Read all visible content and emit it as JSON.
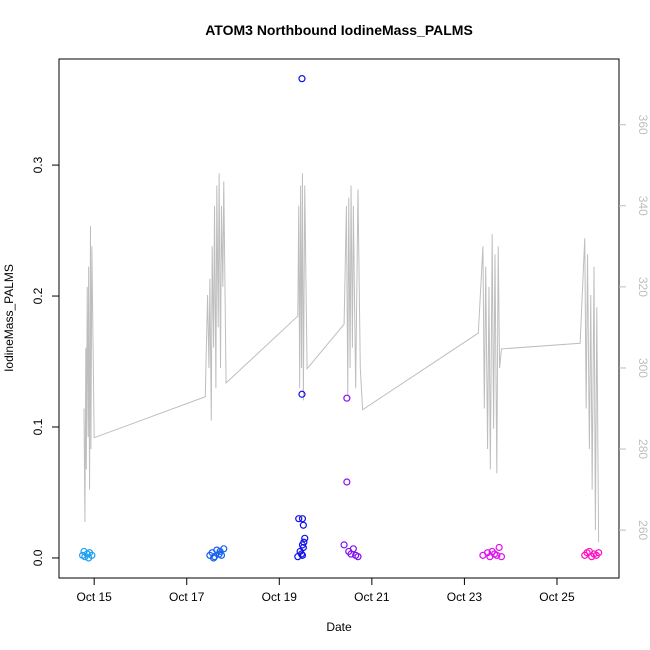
{
  "chart_data": {
    "type": "scatter",
    "title": "ATOM3 Northbound IodineMass_PALMS",
    "x_label": "Date",
    "y_label": "IodineMass_PALMS",
    "xlim": [
      14.24,
      26.34
    ],
    "ylim": [
      -0.0153,
      0.381
    ],
    "y2lim": [
      248.2,
      376.2
    ],
    "xticks": [
      {
        "value": 15,
        "label": "Oct 15"
      },
      {
        "value": 17,
        "label": "Oct 17"
      },
      {
        "value": 19,
        "label": "Oct 19"
      },
      {
        "value": 21,
        "label": "Oct 21"
      },
      {
        "value": 23,
        "label": "Oct 23"
      },
      {
        "value": 25,
        "label": "Oct 25"
      }
    ],
    "yticks": [
      {
        "value": 0,
        "label": "0.0"
      },
      0.1,
      0.2,
      0.3
    ],
    "y2ticks": [
      260,
      280,
      300,
      320,
      340,
      360
    ],
    "y2_color": "#BEBEBE",
    "series": [
      {
        "color": "#1E9FF0",
        "x": [
          14.75,
          14.8,
          14.85,
          14.9,
          14.95,
          14.78,
          14.88
        ],
        "values": [
          0.002,
          0.001,
          0.003,
          0.004,
          0.002,
          0.005,
          0.0
        ]
      },
      {
        "color": "#1560F0",
        "x": [
          17.5,
          17.55,
          17.6,
          17.65,
          17.7,
          17.75,
          17.8,
          17.58,
          17.72
        ],
        "values": [
          0.002,
          0.004,
          0.001,
          0.006,
          0.003,
          0.002,
          0.007,
          0.0,
          0.005
        ]
      },
      {
        "color": "#1010E8",
        "x": [
          19.4,
          19.42,
          19.45,
          19.48,
          19.49,
          19.49,
          19.52,
          19.55,
          19.5,
          19.5,
          19.5,
          19.52,
          19.53
        ],
        "values": [
          0.001,
          0.03,
          0.005,
          0.003,
          0.366,
          0.125,
          0.025,
          0.015,
          0.03,
          0.01,
          0.002,
          0.008,
          0.012
        ]
      },
      {
        "color": "#8010F0",
        "x": [
          20.46,
          20.46,
          20.4,
          20.5,
          20.55,
          20.6,
          20.65,
          20.7
        ],
        "values": [
          0.122,
          0.058,
          0.01,
          0.005,
          0.003,
          0.007,
          0.002,
          0.001
        ]
      },
      {
        "color": "#E010F0",
        "x": [
          23.4,
          23.5,
          23.55,
          23.6,
          23.65,
          23.7,
          23.75,
          23.8
        ],
        "values": [
          0.002,
          0.004,
          0.001,
          0.005,
          0.003,
          0.002,
          0.008,
          0.001
        ]
      },
      {
        "color": "#FF10C0",
        "x": [
          25.6,
          25.65,
          25.7,
          25.75,
          25.8,
          25.85,
          25.9
        ],
        "values": [
          0.002,
          0.004,
          0.005,
          0.001,
          0.003,
          0.002,
          0.004
        ]
      },
      {
        "axis": "y2",
        "type": "line",
        "color": "#BEBEBE",
        "x": [
          14.78,
          14.8,
          14.82,
          14.83,
          14.85,
          14.87,
          14.88,
          14.9,
          14.92,
          14.93,
          14.95,
          15.0,
          17.4,
          17.45,
          17.48,
          17.5,
          17.53,
          17.55,
          17.58,
          17.6,
          17.63,
          17.65,
          17.68,
          17.7,
          17.73,
          17.75,
          17.78,
          17.8,
          17.85,
          19.4,
          19.42,
          19.44,
          19.46,
          19.48,
          19.5,
          19.52,
          19.55,
          19.6,
          20.4,
          20.45,
          20.48,
          20.5,
          20.53,
          20.55,
          20.58,
          20.6,
          20.65,
          20.7,
          20.75,
          20.8,
          23.3,
          23.4,
          23.43,
          23.46,
          23.5,
          23.53,
          23.56,
          23.6,
          23.63,
          23.66,
          23.7,
          23.73,
          23.76,
          23.8,
          25.5,
          25.6,
          25.63,
          25.66,
          25.7,
          25.73,
          25.76,
          25.8,
          25.83,
          25.86,
          25.9
        ],
        "values": [
          290,
          262,
          305,
          275,
          320,
          283,
          325,
          270,
          335,
          280,
          330,
          282.8,
          292.9,
          318,
          300,
          322,
          287,
          330,
          305,
          340,
          295,
          345,
          310,
          348,
          300,
          340,
          320,
          346,
          296.3,
          312.8,
          340,
          295,
          345,
          300,
          348,
          292,
          345,
          299.8,
          310.8,
          340,
          293,
          342,
          300,
          345,
          305,
          340,
          295,
          344,
          300,
          289.7,
          308.6,
          330,
          290,
          325,
          280,
          320,
          275,
          333,
          285,
          328,
          274,
          330,
          300,
          304.7,
          306.1,
          332,
          290,
          328,
          280,
          318,
          270,
          325,
          260,
          315,
          257
        ]
      }
    ]
  }
}
